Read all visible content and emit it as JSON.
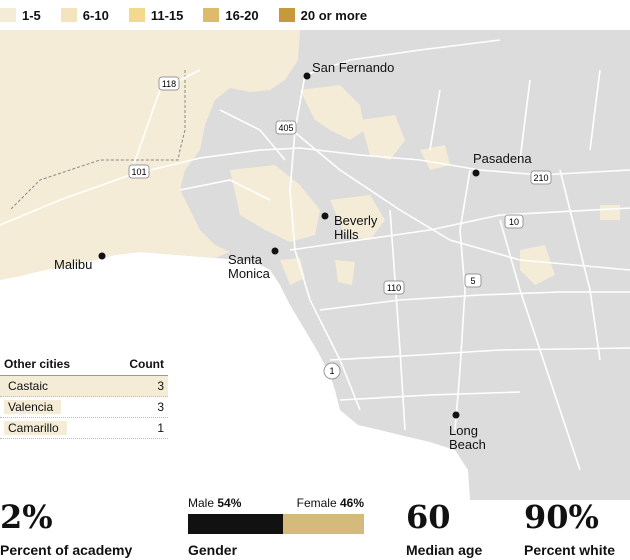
{
  "legend": {
    "items": [
      {
        "label": "1-5",
        "color": "#f4ecd6"
      },
      {
        "label": "6-10",
        "color": "#f3e4bd"
      },
      {
        "label": "11-15",
        "color": "#f3d98c"
      },
      {
        "label": "16-20",
        "color": "#dcbb6a"
      },
      {
        "label": "20 or more",
        "color": "#c49a3a"
      }
    ]
  },
  "map": {
    "cities": [
      {
        "name": "San Fernando"
      },
      {
        "name": "Pasadena"
      },
      {
        "name": "Beverly\nHills"
      },
      {
        "name": "Santa\nMonica"
      },
      {
        "name": "Malibu"
      },
      {
        "name": "Long\nBeach"
      }
    ],
    "highways": [
      "118",
      "405",
      "101",
      "210",
      "10",
      "110",
      "5",
      "1"
    ]
  },
  "other_cities": {
    "header_name": "Other cities",
    "header_count": "Count",
    "rows": [
      {
        "name": "Castaic",
        "count": "3"
      },
      {
        "name": "Valencia",
        "count": "3"
      },
      {
        "name": "Camarillo",
        "count": "1"
      }
    ]
  },
  "stats": {
    "percent_academy": {
      "value": "2%",
      "label": "Percent of academy"
    },
    "gender": {
      "label": "Gender",
      "male_label": "Male",
      "male_pct": "54%",
      "male_share": 0.54,
      "female_label": "Female",
      "female_pct": "46%",
      "female_share": 0.46,
      "male_color": "#111111",
      "female_color": "#d4bb7c"
    },
    "median_age": {
      "value": "60",
      "label": "Median age"
    },
    "percent_white": {
      "value": "90%",
      "label": "Percent white"
    }
  }
}
